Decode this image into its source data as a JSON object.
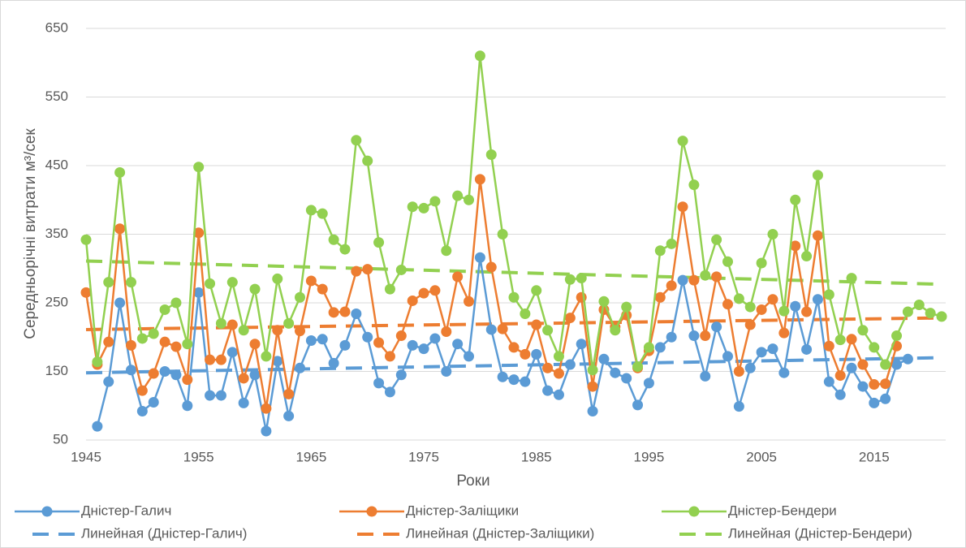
{
  "chart_data": {
    "type": "line",
    "x_label": "Роки",
    "y_label": "Середньорічні витрати м³/сек",
    "x": [
      1945,
      1946,
      1947,
      1948,
      1949,
      1950,
      1951,
      1952,
      1953,
      1954,
      1955,
      1956,
      1957,
      1958,
      1959,
      1960,
      1961,
      1962,
      1963,
      1964,
      1965,
      1966,
      1967,
      1968,
      1969,
      1970,
      1971,
      1972,
      1973,
      1974,
      1975,
      1976,
      1977,
      1978,
      1979,
      1980,
      1981,
      1982,
      1983,
      1984,
      1985,
      1986,
      1987,
      1988,
      1989,
      1990,
      1991,
      1992,
      1993,
      1994,
      1995,
      1996,
      1997,
      1998,
      1999,
      2000,
      2001,
      2002,
      2003,
      2004,
      2005,
      2006,
      2007,
      2008,
      2009,
      2010,
      2011,
      2012,
      2013,
      2014,
      2015,
      2016,
      2017,
      2018,
      2019,
      2020,
      2021
    ],
    "xlim": [
      1945,
      2021
    ],
    "xticks": [
      1945,
      1955,
      1965,
      1975,
      1985,
      1995,
      2005,
      2015
    ],
    "ylim": [
      50,
      650
    ],
    "yticks": [
      50,
      150,
      250,
      350,
      450,
      550,
      650
    ],
    "grid": true,
    "series": [
      {
        "name": "Дністер-Галич",
        "color": "#5b9bd5",
        "values": [
          null,
          70,
          135,
          250,
          152,
          92,
          105,
          150,
          145,
          100,
          265,
          115,
          115,
          178,
          104,
          145,
          63,
          165,
          85,
          155,
          195,
          197,
          162,
          188,
          234,
          200,
          133,
          120,
          145,
          188,
          183,
          198,
          150,
          190,
          172,
          316,
          211,
          142,
          138,
          135,
          175,
          122,
          116,
          160,
          190,
          92,
          168,
          148,
          140,
          101,
          133,
          185,
          200,
          283,
          202,
          143,
          215,
          172,
          99,
          155,
          178,
          183,
          148,
          245,
          182,
          255,
          135,
          116,
          155,
          128,
          104,
          110,
          160,
          168,
          null,
          null,
          null
        ]
      },
      {
        "name": "Дністер-Заліщики",
        "color": "#ed7d31",
        "values": [
          265,
          160,
          193,
          358,
          188,
          122,
          147,
          193,
          186,
          138,
          352,
          167,
          167,
          218,
          140,
          190,
          96,
          210,
          117,
          209,
          282,
          270,
          236,
          237,
          296,
          299,
          192,
          172,
          202,
          253,
          264,
          268,
          208,
          288,
          252,
          430,
          302,
          212,
          185,
          175,
          218,
          155,
          147,
          228,
          258,
          128,
          240,
          215,
          232,
          155,
          180,
          258,
          275,
          390,
          283,
          202,
          288,
          248,
          150,
          218,
          240,
          255,
          206,
          333,
          237,
          348,
          187,
          144,
          197,
          160,
          131,
          132,
          187,
          null,
          null,
          null,
          null
        ]
      },
      {
        "name": "Дністер-Бендери",
        "color": "#92d050",
        "values": [
          342,
          164,
          280,
          440,
          280,
          198,
          205,
          240,
          250,
          190,
          448,
          278,
          220,
          280,
          210,
          270,
          172,
          285,
          220,
          258,
          385,
          380,
          342,
          328,
          487,
          457,
          338,
          270,
          298,
          390,
          388,
          398,
          326,
          406,
          400,
          610,
          466,
          350,
          258,
          234,
          268,
          210,
          172,
          284,
          286,
          152,
          252,
          210,
          244,
          157,
          185,
          326,
          336,
          486,
          422,
          290,
          342,
          310,
          256,
          244,
          308,
          350,
          238,
          400,
          318,
          436,
          262,
          196,
          286,
          210,
          185,
          160,
          202,
          237,
          247,
          235,
          230
        ]
      }
    ],
    "trendlines": [
      {
        "name": "Линейная (Дністер-Галич)",
        "color": "#5b9bd5",
        "x": [
          1945,
          2021
        ],
        "values": [
          148,
          170
        ]
      },
      {
        "name": "Линейная (Дністер-Заліщики)",
        "color": "#ed7d31",
        "x": [
          1945,
          2021
        ],
        "values": [
          211,
          228
        ]
      },
      {
        "name": "Линейная (Дністер-Бендери)",
        "color": "#92d050",
        "x": [
          1945,
          2021
        ],
        "values": [
          311,
          277
        ]
      }
    ]
  }
}
